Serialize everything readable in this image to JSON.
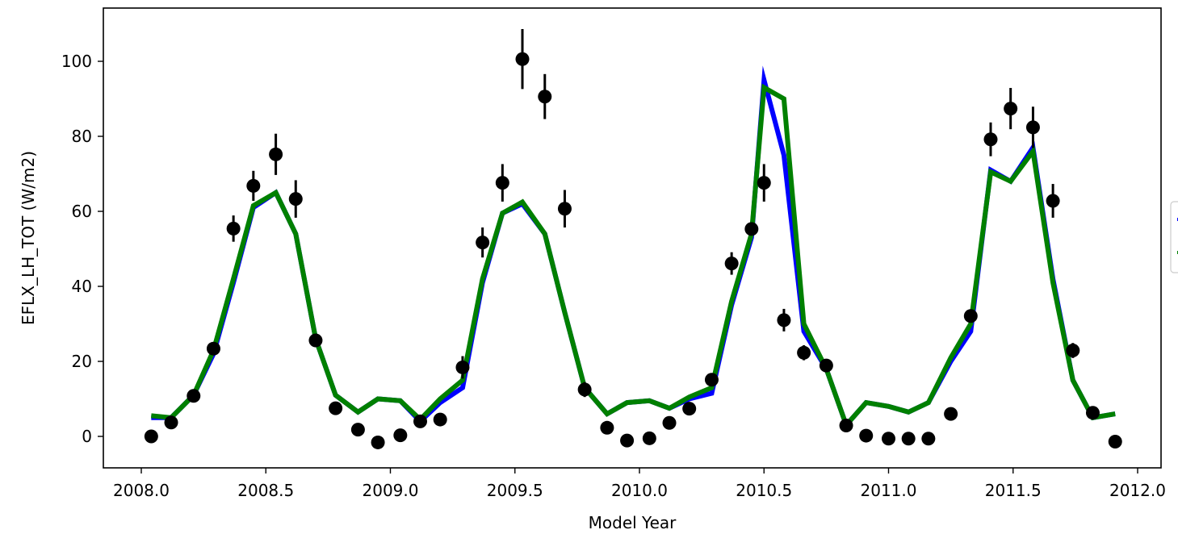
{
  "chart_data": {
    "type": "line",
    "xlabel": "Model Year",
    "ylabel": "EFLX_LH_TOT (W/m2)",
    "xlim": [
      1999.67,
      2012.1
    ],
    "ylim": [
      -8,
      114
    ],
    "grid": false,
    "legend_position": "right (clipped)",
    "xticks": [
      2008.0,
      2008.5,
      2009.0,
      2009.5,
      2010.0,
      2010.5,
      2011.0,
      2011.5,
      2012.0
    ],
    "xtick_labels": [
      "2008.0",
      "2008.5",
      "2009.0",
      "2009.5",
      "2010.0",
      "2010.5",
      "2011.0",
      "2011.5",
      "2012.0"
    ],
    "yticks": [
      0,
      20,
      40,
      60,
      80,
      100
    ],
    "ytick_labels": [
      "0",
      "20",
      "40",
      "60",
      "80",
      "100"
    ],
    "colors": {
      "blue_series": "#0000ff",
      "green_series": "#008000",
      "observations": "#000000"
    },
    "series": [
      {
        "color": "#0000ff",
        "style": "line",
        "x": [
          2008.04,
          2008.12,
          2008.21,
          2008.29,
          2008.37,
          2008.45,
          2008.54,
          2008.62,
          2008.7,
          2008.78,
          2008.87,
          2008.95,
          2009.04,
          2009.12,
          2009.2,
          2009.29,
          2009.37,
          2009.45,
          2009.53,
          2009.62,
          2009.7,
          2009.78,
          2009.87,
          2009.95,
          2010.04,
          2010.12,
          2010.2,
          2010.29,
          2010.37,
          2010.45,
          2010.5,
          2010.58,
          2010.66,
          2010.75,
          2010.83,
          2010.91,
          2011.0,
          2011.08,
          2011.16,
          2011.25,
          2011.33,
          2011.41,
          2011.49,
          2011.58,
          2011.66,
          2011.74,
          2011.82,
          2011.91
        ],
        "values": [
          5,
          5,
          11,
          22,
          41,
          61,
          65,
          54,
          26,
          11,
          6.5,
          10,
          9.5,
          4,
          9,
          13,
          41,
          59.5,
          62,
          54,
          33,
          13,
          6,
          9,
          9.5,
          7.5,
          10,
          11.5,
          35,
          53,
          95,
          75,
          28,
          18,
          3,
          9,
          8,
          6.5,
          9,
          20,
          28,
          71,
          68,
          77,
          42,
          15,
          5,
          6
        ]
      },
      {
        "color": "#008000",
        "style": "line",
        "x": [
          2008.04,
          2008.12,
          2008.21,
          2008.29,
          2008.37,
          2008.45,
          2008.54,
          2008.62,
          2008.7,
          2008.78,
          2008.87,
          2008.95,
          2009.04,
          2009.12,
          2009.2,
          2009.29,
          2009.37,
          2009.45,
          2009.53,
          2009.62,
          2009.7,
          2009.78,
          2009.87,
          2009.95,
          2010.04,
          2010.12,
          2010.2,
          2010.29,
          2010.37,
          2010.45,
          2010.5,
          2010.58,
          2010.66,
          2010.75,
          2010.83,
          2010.91,
          2011.0,
          2011.08,
          2011.16,
          2011.25,
          2011.33,
          2011.41,
          2011.49,
          2011.58,
          2011.66,
          2011.74,
          2011.82,
          2011.91
        ],
        "values": [
          5.5,
          5,
          11,
          23,
          42,
          61.5,
          65,
          54,
          26,
          11,
          6.5,
          10,
          9.5,
          4.5,
          10,
          15,
          42,
          59.5,
          62.5,
          54,
          33,
          13,
          6,
          9,
          9.5,
          7.5,
          10.5,
          13,
          36,
          54,
          93,
          90,
          30,
          18,
          3,
          9,
          8,
          6.5,
          9,
          21,
          30,
          70.5,
          68,
          76,
          41,
          15,
          5,
          6
        ]
      },
      {
        "color": "#000000",
        "style": "errorbar",
        "x": [
          2008.04,
          2008.12,
          2008.21,
          2008.29,
          2008.37,
          2008.45,
          2008.54,
          2008.62,
          2008.7,
          2008.78,
          2008.87,
          2008.95,
          2009.04,
          2009.12,
          2009.2,
          2009.29,
          2009.37,
          2009.45,
          2009.53,
          2009.62,
          2009.7,
          2009.78,
          2009.87,
          2009.95,
          2010.04,
          2010.12,
          2010.2,
          2010.29,
          2010.37,
          2010.45,
          2010.5,
          2010.58,
          2010.66,
          2010.75,
          2010.83,
          2010.91,
          2011.0,
          2011.08,
          2011.16,
          2011.25,
          2011.33,
          2011.41,
          2011.49,
          2011.58,
          2011.66,
          2011.74,
          2011.82,
          2011.91
        ],
        "values": [
          0,
          3.7,
          10.8,
          23.4,
          55.4,
          66.8,
          75.2,
          63.3,
          25.6,
          7.5,
          1.8,
          -1.6,
          0.3,
          4.0,
          4.5,
          18.4,
          51.7,
          67.6,
          100.6,
          90.6,
          60.7,
          12.5,
          2.3,
          -1.1,
          -0.5,
          3.6,
          7.4,
          15.1,
          46.1,
          55.3,
          67.6,
          31.0,
          22.3,
          18.9,
          2.9,
          0.2,
          -0.6,
          -0.6,
          -0.6,
          6.0,
          32.1,
          79.2,
          87.4,
          82.4,
          62.8,
          22.9,
          6.3,
          -1.4
        ],
        "errors": [
          0,
          0,
          0,
          0,
          3.5,
          4,
          5.5,
          5,
          0,
          0,
          0,
          0,
          0,
          0,
          0,
          3,
          4,
          5,
          8,
          6,
          5,
          2,
          0,
          0,
          0,
          0,
          0,
          0,
          3,
          0,
          5,
          3,
          2,
          0,
          0,
          0,
          0,
          0,
          0,
          0,
          0,
          4.5,
          5.5,
          5.5,
          4.5,
          2,
          0,
          0
        ]
      }
    ]
  }
}
